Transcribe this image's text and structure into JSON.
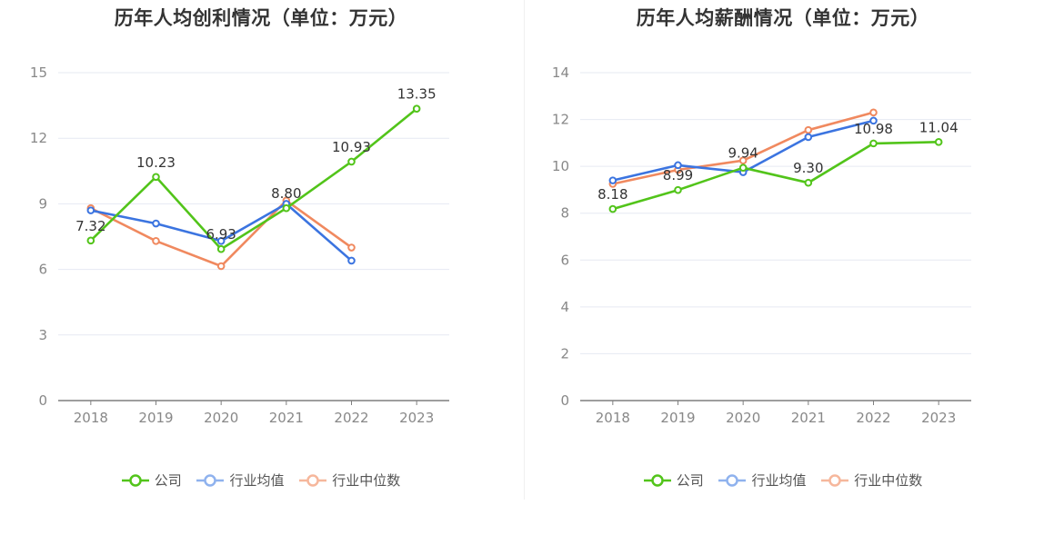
{
  "legend": {
    "company": "公司",
    "industry_avg": "行业均值",
    "industry_median": "行业中位数"
  },
  "colors": {
    "company": "#52c41a",
    "industry_avg": "#3b74e0",
    "industry_median": "#f0895f"
  },
  "chart_data": [
    {
      "type": "line",
      "title": "历年人均创利情况（单位：万元）",
      "categories": [
        "2018",
        "2019",
        "2020",
        "2021",
        "2022",
        "2023"
      ],
      "ylim": [
        0,
        15
      ],
      "yticks": [
        0,
        3,
        6,
        9,
        12,
        15
      ],
      "grid": true,
      "legend_position": "bottom-center",
      "series": [
        {
          "name": "公司",
          "key": "company",
          "values": [
            7.32,
            10.23,
            6.93,
            8.8,
            10.93,
            13.35
          ],
          "labels": true
        },
        {
          "name": "行业均值",
          "key": "industry_avg",
          "values": [
            8.7,
            8.1,
            7.3,
            9.0,
            6.4,
            null
          ],
          "labels": false
        },
        {
          "name": "行业中位数",
          "key": "industry_median",
          "values": [
            8.8,
            7.3,
            6.15,
            9.15,
            7.0,
            null
          ],
          "labels": false
        }
      ]
    },
    {
      "type": "line",
      "title": "历年人均薪酬情况（单位：万元）",
      "categories": [
        "2018",
        "2019",
        "2020",
        "2021",
        "2022",
        "2023"
      ],
      "ylim": [
        0,
        14
      ],
      "yticks": [
        0,
        2,
        4,
        6,
        8,
        10,
        12,
        14
      ],
      "grid": true,
      "legend_position": "bottom-center",
      "series": [
        {
          "name": "公司",
          "key": "company",
          "values": [
            8.18,
            8.99,
            9.94,
            9.3,
            10.98,
            11.04
          ],
          "labels": true
        },
        {
          "name": "行业均值",
          "key": "industry_avg",
          "values": [
            9.4,
            10.05,
            9.75,
            11.25,
            11.95,
            null
          ],
          "labels": false
        },
        {
          "name": "行业中位数",
          "key": "industry_median",
          "values": [
            9.25,
            9.85,
            10.25,
            11.55,
            12.3,
            null
          ],
          "labels": false
        }
      ]
    }
  ]
}
